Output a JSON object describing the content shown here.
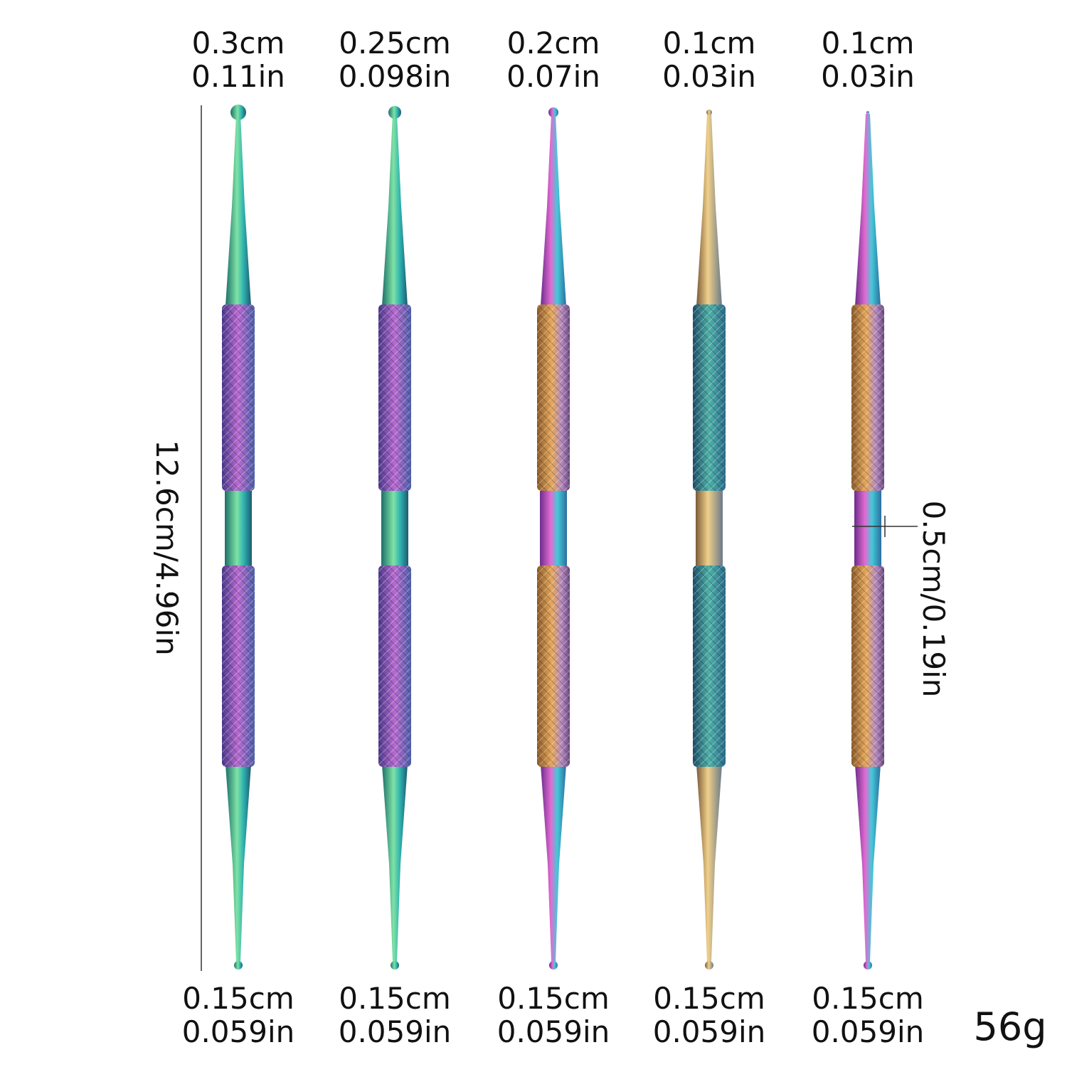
{
  "tools": [
    {
      "top_cm": "0.3cm",
      "top_in": "0.11in",
      "bottom_cm": "0.15cm",
      "bottom_in": "0.059in"
    },
    {
      "top_cm": "0.25cm",
      "top_in": "0.098in",
      "bottom_cm": "0.15cm",
      "bottom_in": "0.059in"
    },
    {
      "top_cm": "0.2cm",
      "top_in": "0.07in",
      "bottom_cm": "0.15cm",
      "bottom_in": "0.059in"
    },
    {
      "top_cm": "0.1cm",
      "top_in": "0.03in",
      "bottom_cm": "0.15cm",
      "bottom_in": "0.059in"
    },
    {
      "top_cm": "0.1cm",
      "top_in": "0.03in",
      "bottom_cm": "0.15cm",
      "bottom_in": "0.059in"
    }
  ],
  "length": "12.6cm/4.96in",
  "width": "0.5cm/0.19in",
  "weight": "56g"
}
